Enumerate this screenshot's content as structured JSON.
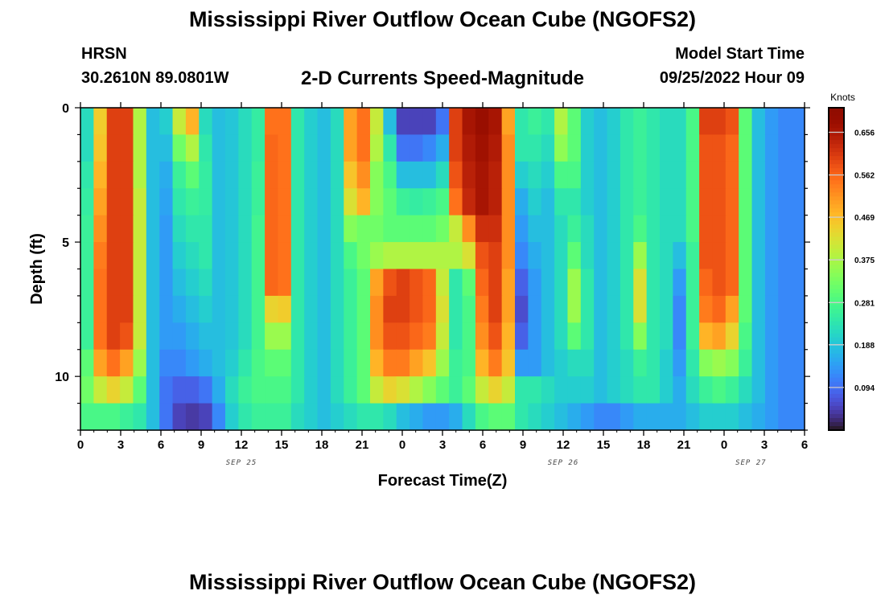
{
  "titles": {
    "main": "Mississippi River Outflow Ocean Cube (NGOFS2)",
    "bottom": "Mississippi River Outflow Ocean Cube (NGOFS2)",
    "station_name": "HRSN",
    "station_coords": "30.2610N  89.0801W",
    "variable": "2-D Currents Speed-Magnitude",
    "run_label": "Model Start Time",
    "run_time": "09/25/2022 Hour 09"
  },
  "chart_data": {
    "type": "heatmap",
    "xlabel": "Forecast Time(Z)",
    "ylabel": "Depth (ft)",
    "x_tick_labels": [
      "0",
      "3",
      "6",
      "9",
      "12",
      "15",
      "18",
      "21",
      "0",
      "3",
      "6",
      "9",
      "12",
      "15",
      "18",
      "21",
      "0",
      "3",
      "6"
    ],
    "date_labels": [
      {
        "text": "SEP 25",
        "hour": 12
      },
      {
        "text": "SEP 26",
        "hour": 36
      },
      {
        "text": "SEP 27",
        "hour": 50
      }
    ],
    "x_range_hours": [
      0,
      54
    ],
    "y_ticks": [
      0,
      5,
      10
    ],
    "ylim": [
      0,
      12
    ],
    "colorbar": {
      "title": "Knots",
      "ticks": [
        "0.656",
        "0.562",
        "0.469",
        "0.375",
        "0.281",
        "0.188",
        "0.094"
      ],
      "tick_values": [
        0.656,
        0.562,
        0.469,
        0.375,
        0.281,
        0.188,
        0.094
      ],
      "range": [
        0.0,
        0.71
      ],
      "colormap": "turbo"
    },
    "grid": false,
    "time_hours": [
      0,
      1,
      2,
      3,
      4,
      5,
      6,
      7,
      8,
      9,
      10,
      11,
      12,
      13,
      14,
      15,
      16,
      17,
      18,
      19,
      20,
      21,
      22,
      23,
      24,
      25,
      26,
      27,
      28,
      29,
      30,
      31,
      32,
      33,
      34,
      35,
      36,
      37,
      38,
      39,
      40,
      41,
      42,
      43,
      44,
      45,
      46,
      47,
      48,
      49,
      50,
      51,
      52,
      53,
      54
    ],
    "depth_levels_ft": [
      0.5,
      1.5,
      2.5,
      3.5,
      4.5,
      5.5,
      6.5,
      7.5,
      8.5,
      9.5,
      10.5,
      11.5
    ],
    "speed_knots": [
      [
        0.22,
        0.45,
        0.6,
        0.6,
        0.38,
        0.18,
        0.2,
        0.4,
        0.48,
        0.22,
        0.18,
        0.19,
        0.22,
        0.25,
        0.55,
        0.55,
        0.24,
        0.2,
        0.18,
        0.22,
        0.5,
        0.55,
        0.4,
        0.18,
        0.05,
        0.05,
        0.05,
        0.1,
        0.6,
        0.66,
        0.68,
        0.66,
        0.5,
        0.24,
        0.26,
        0.24,
        0.38,
        0.3,
        0.2,
        0.18,
        0.2,
        0.24,
        0.26,
        0.24,
        0.22,
        0.22,
        0.28,
        0.6,
        0.6,
        0.58,
        0.3,
        0.18,
        0.14,
        0.12,
        0.12
      ],
      [
        0.22,
        0.46,
        0.6,
        0.6,
        0.38,
        0.18,
        0.18,
        0.32,
        0.38,
        0.24,
        0.18,
        0.19,
        0.22,
        0.25,
        0.56,
        0.55,
        0.24,
        0.2,
        0.18,
        0.22,
        0.5,
        0.55,
        0.38,
        0.24,
        0.1,
        0.1,
        0.12,
        0.16,
        0.6,
        0.65,
        0.67,
        0.65,
        0.52,
        0.24,
        0.24,
        0.22,
        0.35,
        0.3,
        0.2,
        0.18,
        0.2,
        0.24,
        0.26,
        0.24,
        0.22,
        0.22,
        0.28,
        0.58,
        0.58,
        0.56,
        0.3,
        0.18,
        0.14,
        0.12,
        0.12
      ],
      [
        0.24,
        0.48,
        0.6,
        0.6,
        0.38,
        0.18,
        0.16,
        0.26,
        0.3,
        0.25,
        0.18,
        0.19,
        0.22,
        0.26,
        0.56,
        0.55,
        0.24,
        0.2,
        0.18,
        0.22,
        0.46,
        0.52,
        0.34,
        0.28,
        0.18,
        0.18,
        0.18,
        0.22,
        0.58,
        0.64,
        0.66,
        0.64,
        0.52,
        0.2,
        0.22,
        0.2,
        0.28,
        0.28,
        0.2,
        0.18,
        0.2,
        0.24,
        0.26,
        0.24,
        0.22,
        0.22,
        0.28,
        0.58,
        0.58,
        0.56,
        0.3,
        0.18,
        0.14,
        0.12,
        0.12
      ],
      [
        0.25,
        0.5,
        0.6,
        0.6,
        0.4,
        0.18,
        0.15,
        0.24,
        0.26,
        0.25,
        0.18,
        0.19,
        0.22,
        0.26,
        0.56,
        0.55,
        0.24,
        0.2,
        0.18,
        0.22,
        0.42,
        0.48,
        0.34,
        0.3,
        0.26,
        0.25,
        0.26,
        0.28,
        0.55,
        0.63,
        0.66,
        0.64,
        0.52,
        0.16,
        0.2,
        0.18,
        0.24,
        0.24,
        0.2,
        0.18,
        0.2,
        0.24,
        0.26,
        0.24,
        0.22,
        0.22,
        0.28,
        0.58,
        0.58,
        0.56,
        0.3,
        0.18,
        0.14,
        0.12,
        0.12
      ],
      [
        0.26,
        0.52,
        0.6,
        0.6,
        0.4,
        0.18,
        0.14,
        0.22,
        0.24,
        0.24,
        0.18,
        0.19,
        0.22,
        0.27,
        0.56,
        0.55,
        0.24,
        0.2,
        0.18,
        0.22,
        0.34,
        0.32,
        0.32,
        0.3,
        0.3,
        0.3,
        0.3,
        0.32,
        0.4,
        0.52,
        0.62,
        0.62,
        0.52,
        0.14,
        0.18,
        0.18,
        0.22,
        0.26,
        0.22,
        0.18,
        0.2,
        0.24,
        0.28,
        0.24,
        0.22,
        0.22,
        0.28,
        0.58,
        0.58,
        0.56,
        0.3,
        0.18,
        0.14,
        0.12,
        0.12
      ],
      [
        0.26,
        0.54,
        0.6,
        0.6,
        0.4,
        0.18,
        0.14,
        0.2,
        0.22,
        0.24,
        0.18,
        0.19,
        0.22,
        0.27,
        0.56,
        0.55,
        0.24,
        0.2,
        0.18,
        0.22,
        0.28,
        0.32,
        0.36,
        0.38,
        0.38,
        0.38,
        0.38,
        0.38,
        0.38,
        0.42,
        0.58,
        0.6,
        0.52,
        0.12,
        0.16,
        0.18,
        0.22,
        0.3,
        0.22,
        0.18,
        0.2,
        0.24,
        0.36,
        0.24,
        0.22,
        0.18,
        0.26,
        0.58,
        0.58,
        0.56,
        0.3,
        0.18,
        0.14,
        0.12,
        0.12
      ],
      [
        0.26,
        0.55,
        0.6,
        0.6,
        0.4,
        0.18,
        0.14,
        0.18,
        0.2,
        0.22,
        0.18,
        0.19,
        0.22,
        0.27,
        0.56,
        0.55,
        0.24,
        0.2,
        0.18,
        0.22,
        0.26,
        0.3,
        0.5,
        0.58,
        0.6,
        0.58,
        0.56,
        0.4,
        0.24,
        0.3,
        0.56,
        0.6,
        0.5,
        0.08,
        0.14,
        0.18,
        0.22,
        0.36,
        0.24,
        0.18,
        0.2,
        0.24,
        0.42,
        0.24,
        0.22,
        0.14,
        0.26,
        0.56,
        0.58,
        0.56,
        0.3,
        0.18,
        0.14,
        0.12,
        0.12
      ],
      [
        0.26,
        0.55,
        0.6,
        0.6,
        0.4,
        0.18,
        0.14,
        0.16,
        0.18,
        0.2,
        0.18,
        0.19,
        0.22,
        0.27,
        0.44,
        0.45,
        0.24,
        0.2,
        0.18,
        0.22,
        0.26,
        0.3,
        0.52,
        0.6,
        0.6,
        0.58,
        0.56,
        0.42,
        0.24,
        0.28,
        0.54,
        0.6,
        0.5,
        0.06,
        0.14,
        0.18,
        0.22,
        0.36,
        0.24,
        0.18,
        0.2,
        0.24,
        0.42,
        0.24,
        0.22,
        0.12,
        0.26,
        0.54,
        0.56,
        0.5,
        0.3,
        0.18,
        0.14,
        0.12,
        0.12
      ],
      [
        0.26,
        0.55,
        0.6,
        0.58,
        0.4,
        0.18,
        0.14,
        0.14,
        0.16,
        0.18,
        0.18,
        0.19,
        0.22,
        0.27,
        0.36,
        0.36,
        0.24,
        0.2,
        0.18,
        0.22,
        0.26,
        0.3,
        0.52,
        0.58,
        0.58,
        0.56,
        0.54,
        0.4,
        0.24,
        0.28,
        0.52,
        0.58,
        0.48,
        0.08,
        0.14,
        0.18,
        0.22,
        0.3,
        0.24,
        0.18,
        0.2,
        0.24,
        0.34,
        0.24,
        0.22,
        0.12,
        0.26,
        0.48,
        0.5,
        0.44,
        0.28,
        0.18,
        0.14,
        0.12,
        0.12
      ],
      [
        0.3,
        0.5,
        0.55,
        0.5,
        0.36,
        0.18,
        0.12,
        0.12,
        0.14,
        0.16,
        0.18,
        0.2,
        0.24,
        0.28,
        0.3,
        0.3,
        0.24,
        0.2,
        0.18,
        0.22,
        0.26,
        0.3,
        0.48,
        0.54,
        0.54,
        0.5,
        0.46,
        0.36,
        0.26,
        0.28,
        0.48,
        0.54,
        0.46,
        0.14,
        0.14,
        0.18,
        0.2,
        0.22,
        0.22,
        0.18,
        0.2,
        0.22,
        0.26,
        0.24,
        0.2,
        0.14,
        0.24,
        0.34,
        0.36,
        0.34,
        0.26,
        0.18,
        0.14,
        0.12,
        0.12
      ],
      [
        0.32,
        0.4,
        0.44,
        0.4,
        0.3,
        0.18,
        0.1,
        0.08,
        0.08,
        0.1,
        0.16,
        0.22,
        0.26,
        0.28,
        0.28,
        0.28,
        0.24,
        0.2,
        0.18,
        0.22,
        0.26,
        0.3,
        0.4,
        0.44,
        0.42,
        0.38,
        0.34,
        0.3,
        0.26,
        0.3,
        0.4,
        0.44,
        0.4,
        0.24,
        0.24,
        0.22,
        0.2,
        0.2,
        0.2,
        0.18,
        0.2,
        0.22,
        0.24,
        0.24,
        0.2,
        0.16,
        0.22,
        0.26,
        0.28,
        0.26,
        0.22,
        0.18,
        0.14,
        0.12,
        0.12
      ],
      [
        0.28,
        0.28,
        0.28,
        0.26,
        0.24,
        0.18,
        0.1,
        0.05,
        0.04,
        0.05,
        0.12,
        0.2,
        0.24,
        0.26,
        0.26,
        0.26,
        0.22,
        0.2,
        0.18,
        0.2,
        0.22,
        0.24,
        0.24,
        0.22,
        0.18,
        0.16,
        0.14,
        0.14,
        0.16,
        0.22,
        0.28,
        0.3,
        0.3,
        0.24,
        0.22,
        0.2,
        0.18,
        0.16,
        0.14,
        0.12,
        0.12,
        0.14,
        0.16,
        0.16,
        0.16,
        0.16,
        0.18,
        0.2,
        0.2,
        0.2,
        0.18,
        0.16,
        0.14,
        0.12,
        0.12
      ]
    ]
  }
}
